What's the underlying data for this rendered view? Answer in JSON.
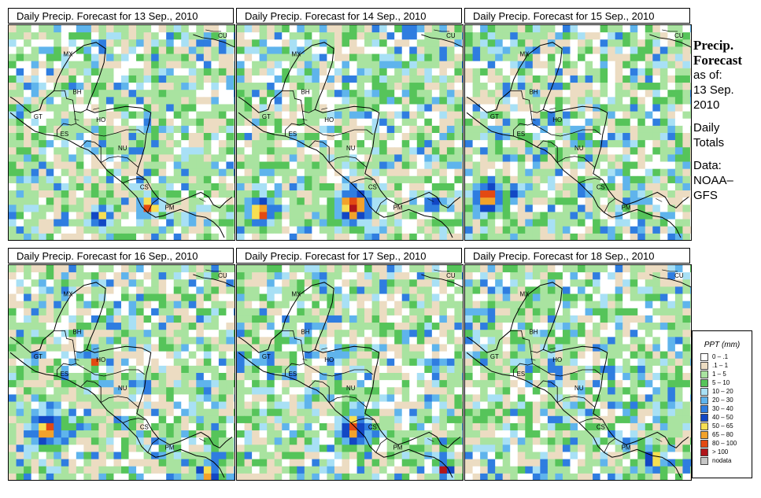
{
  "panels": [
    {
      "title": "Daily Precip. Forecast for  13 Sep., 2010"
    },
    {
      "title": "Daily Precip. Forecast for  14 Sep., 2010"
    },
    {
      "title": "Daily Precip. Forecast for  15 Sep., 2010"
    },
    {
      "title": "Daily Precip. Forecast for  16 Sep., 2010"
    },
    {
      "title": "Daily Precip. Forecast for  17 Sep., 2010"
    },
    {
      "title": "Daily Precip. Forecast for  18 Sep., 2010"
    }
  ],
  "country_labels": {
    "mx": "MX",
    "bh": "BH",
    "gt": "GT",
    "ho": "HO",
    "es": "ES",
    "nu": "NU",
    "cs": "CS",
    "pm": "PM",
    "cu": "CU"
  },
  "side": {
    "title_line1": "Precip.",
    "title_line2": "Forecast",
    "asof": "as of:",
    "date_line1": "13 Sep.",
    "date_line2": "2010",
    "daily_line1": "Daily",
    "daily_line2": "Totals",
    "data_line1": "Data:",
    "data_line2": "NOAA–",
    "data_line3": "GFS"
  },
  "legend": {
    "title": "PPT (mm)",
    "items": [
      {
        "label": "0 – .1",
        "color": "#ffffff"
      },
      {
        "label": ".1 – 1",
        "color": "#ecdcc2"
      },
      {
        "label": "1 – 5",
        "color": "#a9e3a0"
      },
      {
        "label": "5 – 10",
        "color": "#56c45a"
      },
      {
        "label": "10 – 20",
        "color": "#a8e0f5"
      },
      {
        "label": "20 – 30",
        "color": "#5fb4ec"
      },
      {
        "label": "30 – 40",
        "color": "#2f7de0"
      },
      {
        "label": "40 – 50",
        "color": "#1247c4"
      },
      {
        "label": "50 – 65",
        "color": "#f7df52"
      },
      {
        "label": "65 – 80",
        "color": "#f2a22b"
      },
      {
        "label": "80 – 100",
        "color": "#e34a13"
      },
      {
        "label": "> 100",
        "color": "#b0151a"
      },
      {
        "label": "nodata",
        "color": "#c6c6c6"
      }
    ]
  }
}
